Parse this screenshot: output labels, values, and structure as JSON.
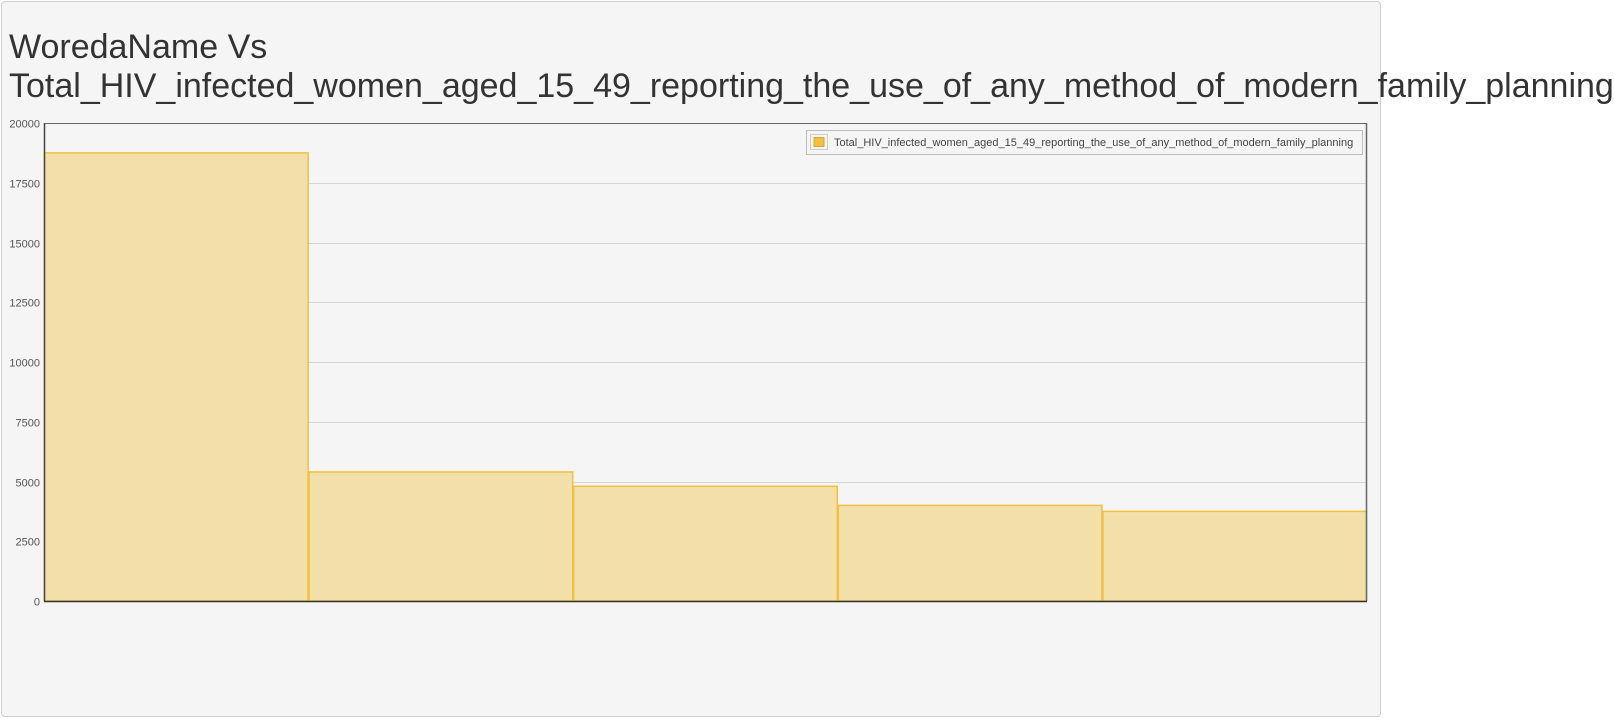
{
  "chart_data": {
    "type": "bar",
    "title_line1": "WoredaName Vs",
    "title_line2": "Total_HIV_infected_women_aged_15_49_reporting_the_use_of_any_method_of_modern_family_planning",
    "xlabel": "",
    "ylabel": "",
    "ylim": [
      0,
      20000
    ],
    "yticks": [
      0,
      2500,
      5000,
      7500,
      10000,
      12500,
      15000,
      17500,
      20000
    ],
    "grid": true,
    "legend_position": "top-right",
    "series": [
      {
        "name": "Total_HIV_infected_women_aged_15_49_reporting_the_use_of_any_method_of_modern_family_planning",
        "color": "#f0c040",
        "fill": "#f3dfaa",
        "values": [
          18750,
          5400,
          4800,
          4000,
          3750
        ]
      }
    ]
  }
}
